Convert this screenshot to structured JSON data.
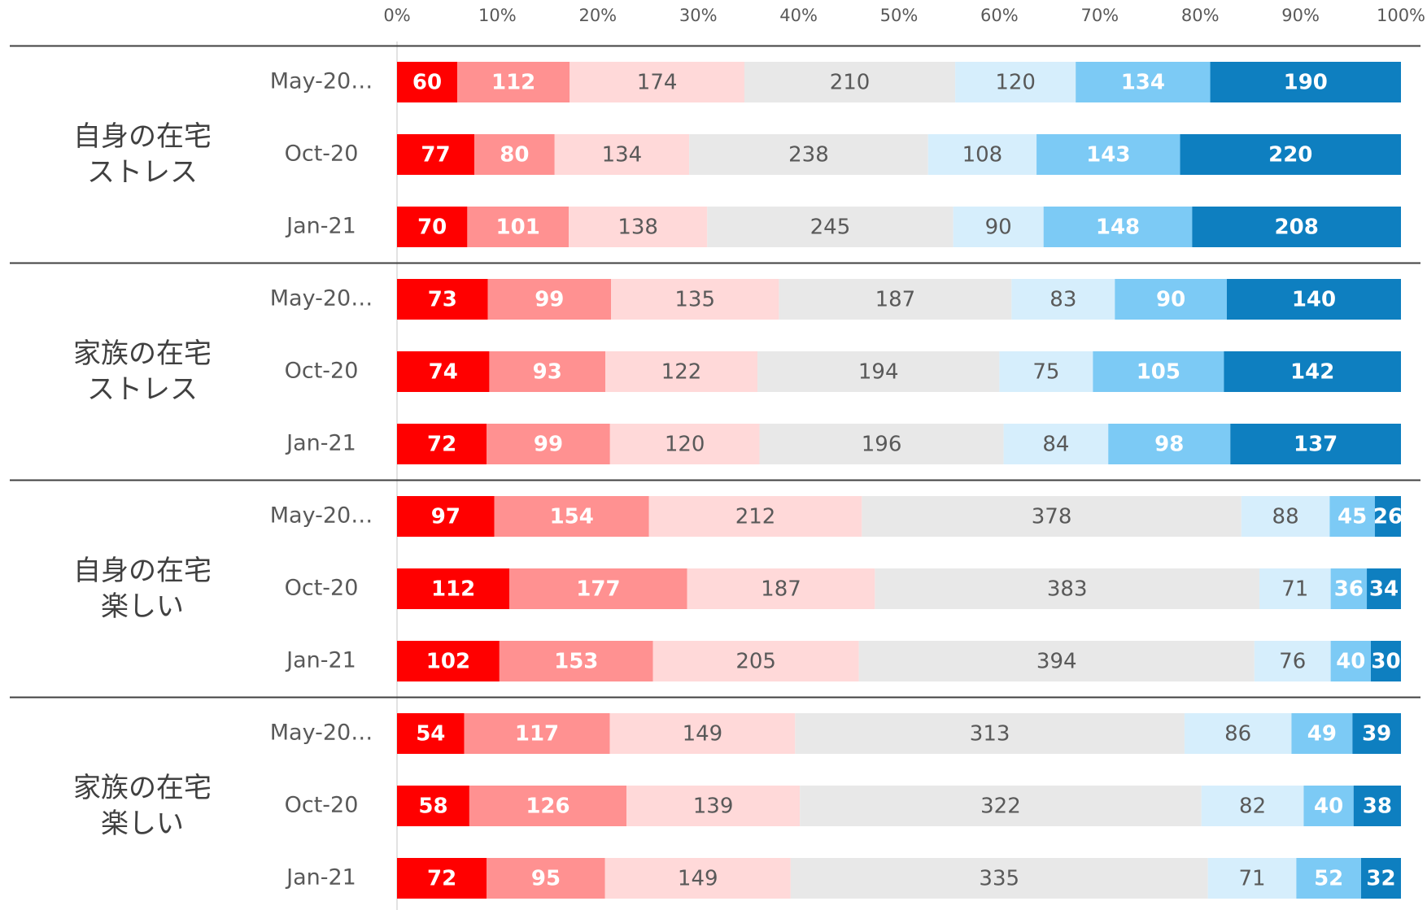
{
  "chart_data": {
    "type": "stacked_bar_100",
    "groups": [
      "自身の在宅ストレス",
      "家族の在宅ストレス",
      "自身の在宅楽しい",
      "家族の在宅楽しい"
    ],
    "categories": [
      "May-20…",
      "Oct-20",
      "Jan-21",
      "May-20…",
      "Oct-20",
      "Jan-21",
      "May-20…",
      "Oct-20",
      "Jan-21",
      "May-20…",
      "Oct-20",
      "Jan-21"
    ],
    "series": [
      {
        "color": "#ff0000",
        "text_color": "#ffffff",
        "bold": true,
        "values": [
          60,
          77,
          70,
          73,
          74,
          72,
          97,
          112,
          102,
          54,
          58,
          72
        ]
      },
      {
        "color": "#ff9191",
        "text_color": "#ffffff",
        "bold": true,
        "values": [
          112,
          80,
          101,
          99,
          93,
          99,
          154,
          177,
          153,
          117,
          126,
          95
        ]
      },
      {
        "color": "#ffd9d9",
        "text_color": "#595959",
        "bold": false,
        "values": [
          174,
          134,
          138,
          135,
          122,
          120,
          212,
          187,
          205,
          149,
          139,
          149
        ]
      },
      {
        "color": "#e8e8e8",
        "text_color": "#595959",
        "bold": false,
        "values": [
          210,
          238,
          245,
          187,
          194,
          196,
          378,
          383,
          394,
          313,
          322,
          335
        ]
      },
      {
        "color": "#d6eefc",
        "text_color": "#595959",
        "bold": false,
        "values": [
          120,
          108,
          90,
          83,
          75,
          84,
          88,
          71,
          76,
          86,
          82,
          71
        ]
      },
      {
        "color": "#7ccaf5",
        "text_color": "#ffffff",
        "bold": true,
        "values": [
          134,
          143,
          148,
          90,
          105,
          98,
          45,
          36,
          40,
          49,
          40,
          52
        ]
      },
      {
        "color": "#0e7fc0",
        "text_color": "#ffffff",
        "bold": true,
        "values": [
          190,
          220,
          208,
          140,
          142,
          137,
          26,
          34,
          30,
          39,
          38,
          32
        ]
      }
    ],
    "xlim": [
      0,
      100
    ],
    "xticks": [
      {
        "value": 0,
        "label": "0%"
      },
      {
        "value": 10,
        "label": "10%"
      },
      {
        "value": 20,
        "label": "20%"
      },
      {
        "value": 30,
        "label": "30%"
      },
      {
        "value": 40,
        "label": "40%"
      },
      {
        "value": 50,
        "label": "50%"
      },
      {
        "value": 60,
        "label": "60%"
      },
      {
        "value": 70,
        "label": "70%"
      },
      {
        "value": 80,
        "label": "80%"
      },
      {
        "value": 90,
        "label": "90%"
      },
      {
        "value": 100,
        "label": "100%"
      }
    ]
  }
}
